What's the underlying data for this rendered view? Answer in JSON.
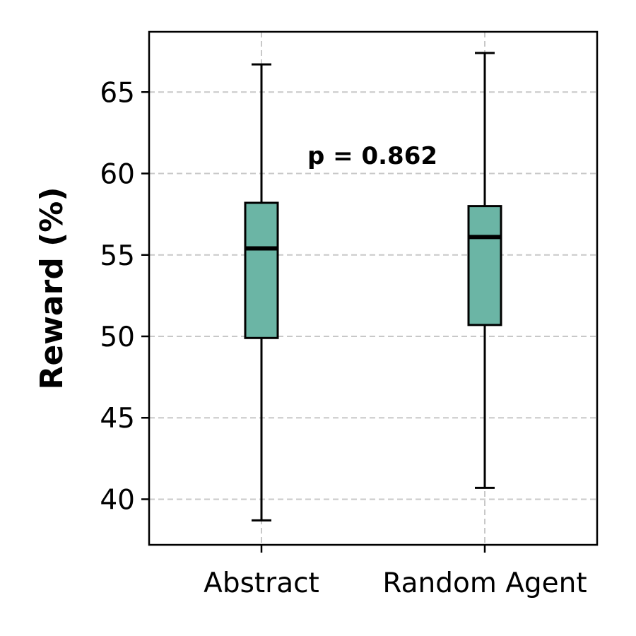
{
  "chart_data": {
    "type": "box",
    "title": "",
    "xlabel": "",
    "ylabel": "Reward (%)",
    "categories": [
      "Abstract",
      "Random Agent"
    ],
    "boxes": [
      {
        "category": "Abstract",
        "whisker_low": 38.7,
        "q1": 49.9,
        "median": 55.4,
        "q3": 58.2,
        "whisker_high": 66.7
      },
      {
        "category": "Random Agent",
        "whisker_low": 40.7,
        "q1": 50.7,
        "median": 56.1,
        "q3": 58.0,
        "whisker_high": 67.4
      }
    ],
    "yticks": [
      40,
      45,
      50,
      55,
      60,
      65
    ],
    "ylim": [
      37.2,
      68.7
    ],
    "grid": "both",
    "box_color": "#6bb5a5",
    "annotation": "p = 0.862"
  }
}
